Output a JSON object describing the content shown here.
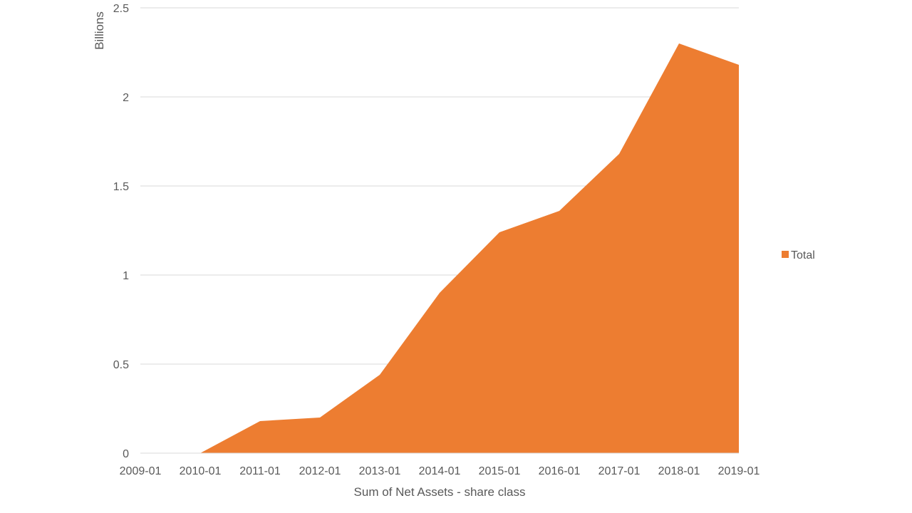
{
  "chart_data": {
    "type": "area",
    "x": [
      "2009-01",
      "2010-01",
      "2011-01",
      "2012-01",
      "2013-01",
      "2014-01",
      "2015-01",
      "2016-01",
      "2017-01",
      "2018-01",
      "2019-01"
    ],
    "series": [
      {
        "name": "Total",
        "values": [
          0,
          0,
          0.18,
          0.2,
          0.44,
          0.9,
          1.24,
          1.36,
          1.68,
          2.3,
          2.18
        ],
        "color": "#ED7D31"
      }
    ],
    "title": "",
    "xlabel": "Sum of Net Assets - share class",
    "ylabel": "Billions",
    "ylim": [
      0,
      2.5
    ],
    "yticks": [
      "0",
      "0.5",
      "1",
      "1.5",
      "2",
      "2.5"
    ],
    "grid": true,
    "legend_position": "right"
  }
}
